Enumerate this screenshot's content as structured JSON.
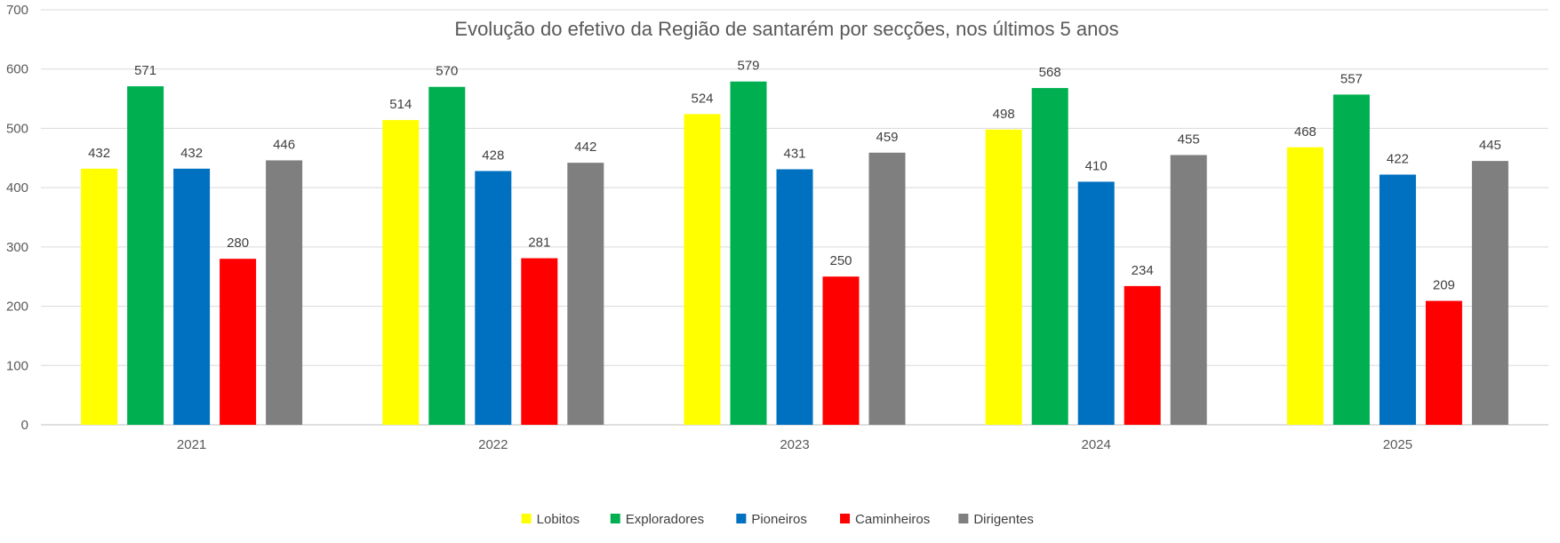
{
  "chart_data": {
    "type": "bar",
    "title": "Evolução do efetivo da Região de santarém por secções, nos últimos 5 anos",
    "categories": [
      "2021",
      "2022",
      "2023",
      "2024",
      "2025"
    ],
    "series": [
      {
        "name": "Lobitos",
        "color": "#ffff00",
        "values": [
          432,
          514,
          524,
          498,
          468
        ]
      },
      {
        "name": "Exploradores",
        "color": "#00b050",
        "values": [
          571,
          570,
          579,
          568,
          557
        ]
      },
      {
        "name": "Pioneiros",
        "color": "#0070c0",
        "values": [
          432,
          428,
          431,
          410,
          422
        ]
      },
      {
        "name": "Caminheiros",
        "color": "#ff0000",
        "values": [
          280,
          281,
          250,
          234,
          209
        ]
      },
      {
        "name": "Dirigentes",
        "color": "#7f7f7f",
        "values": [
          446,
          442,
          459,
          455,
          445
        ]
      }
    ],
    "ylim": [
      0,
      700
    ],
    "yticks": [
      "0",
      "100",
      "200",
      "300",
      "400",
      "500",
      "600",
      "700"
    ],
    "grid": true,
    "legend_position": "bottom"
  }
}
